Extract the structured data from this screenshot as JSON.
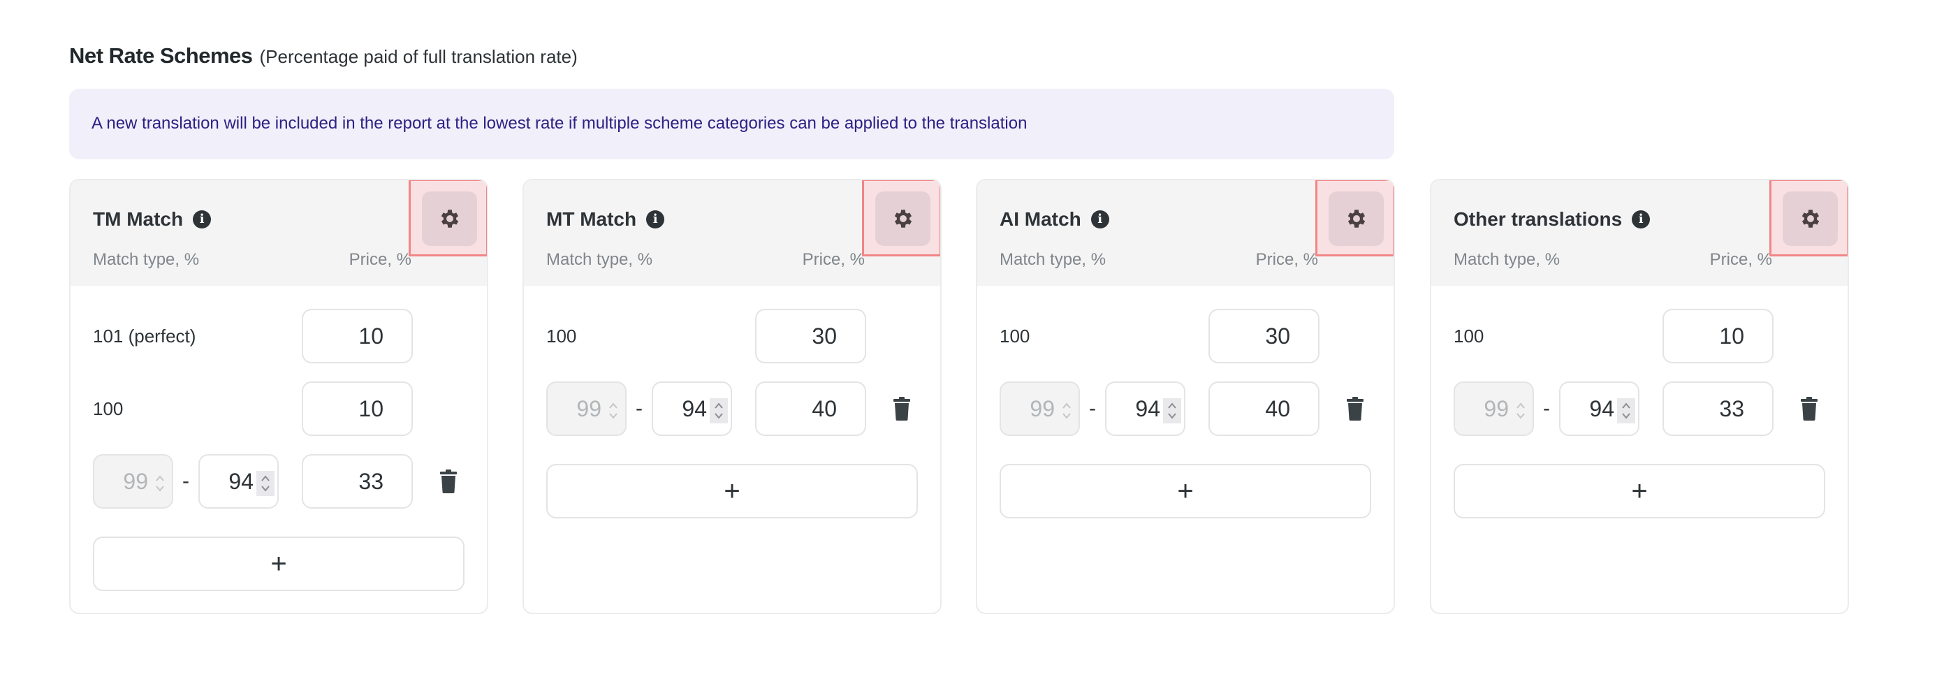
{
  "header": {
    "title": "Net Rate Schemes",
    "subtitle": "(Percentage paid of full translation rate)"
  },
  "banner": {
    "text": "A new translation will be included in the report at the lowest rate if multiple scheme categories can be applied to the translation"
  },
  "colors": {
    "banner_bg": "#f1effa",
    "banner_text": "#2b2183",
    "highlight_outline": "#f28585",
    "header_bg": "#f4f4f5"
  },
  "cards": [
    {
      "title": "TM Match",
      "match_label": "Match type, %",
      "price_label": "Price, %",
      "fixed_rows": [
        {
          "label": "101 (perfect)",
          "price": "10"
        },
        {
          "label": "100",
          "price": "10"
        }
      ],
      "range_rows": [
        {
          "from": "99",
          "to": "94",
          "price": "33"
        }
      ],
      "add_label": "+"
    },
    {
      "title": "MT Match",
      "match_label": "Match type, %",
      "price_label": "Price, %",
      "fixed_rows": [
        {
          "label": "100",
          "price": "30"
        }
      ],
      "range_rows": [
        {
          "from": "99",
          "to": "94",
          "price": "40"
        }
      ],
      "add_label": "+"
    },
    {
      "title": "AI Match",
      "match_label": "Match type, %",
      "price_label": "Price, %",
      "fixed_rows": [
        {
          "label": "100",
          "price": "30"
        }
      ],
      "range_rows": [
        {
          "from": "99",
          "to": "94",
          "price": "40"
        }
      ],
      "add_label": "+"
    },
    {
      "title": "Other translations",
      "match_label": "Match type, %",
      "price_label": "Price, %",
      "fixed_rows": [
        {
          "label": "100",
          "price": "10"
        }
      ],
      "range_rows": [
        {
          "from": "99",
          "to": "94",
          "price": "33"
        }
      ],
      "add_label": "+"
    }
  ],
  "icons": {
    "info": "info-icon",
    "settings": "gear-icon",
    "delete": "trash-icon",
    "spinner": "chevron-up-down-icon"
  }
}
